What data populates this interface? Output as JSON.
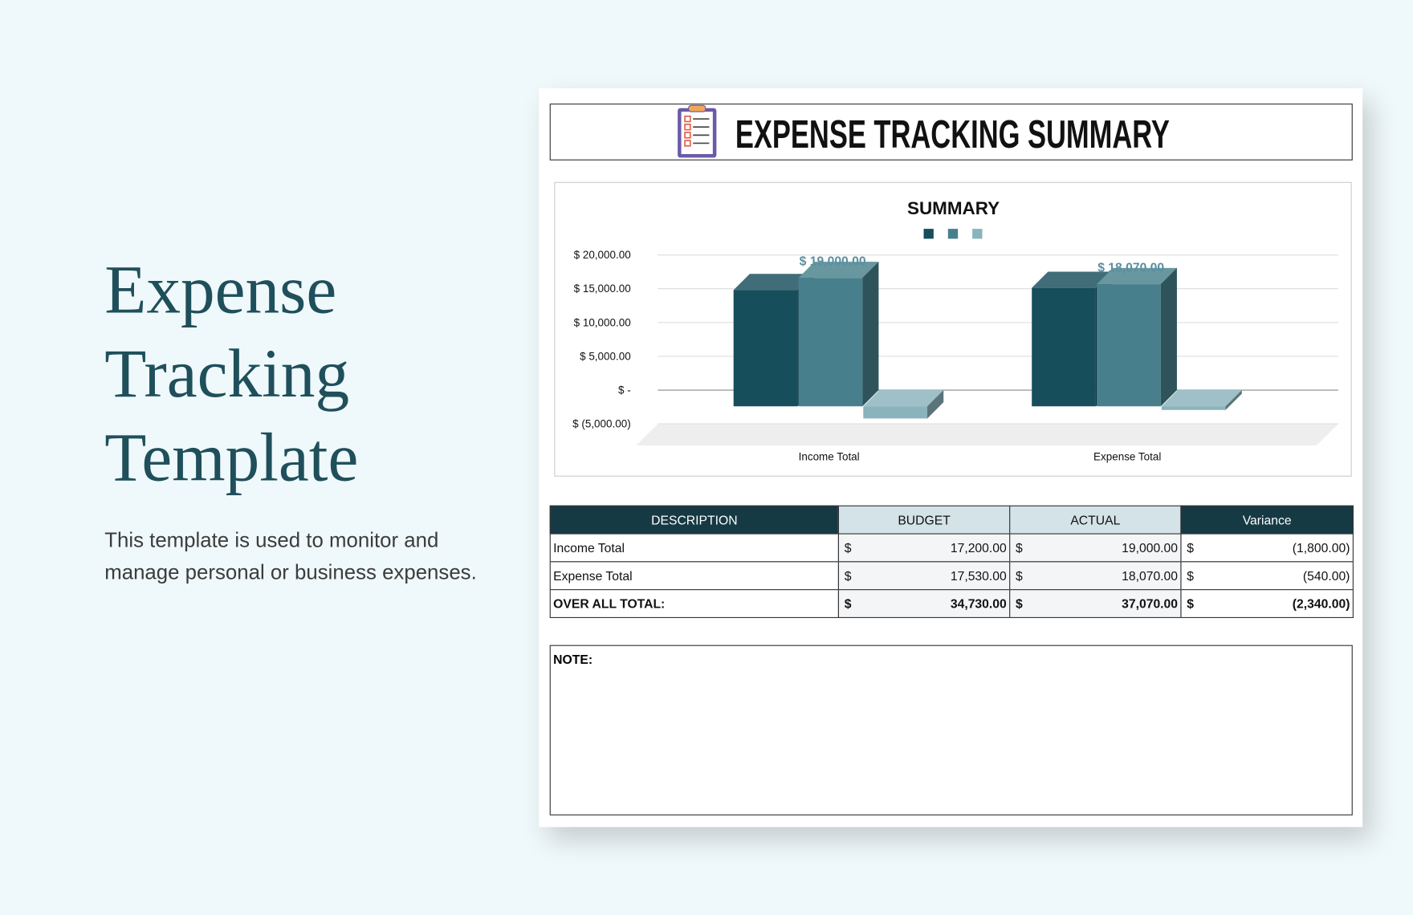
{
  "hero": {
    "title_lines": [
      "Expense",
      "Tracking",
      "Template"
    ],
    "description": "This template is used to monitor and manage personal or business expenses."
  },
  "sheet": {
    "title": "EXPENSE TRACKING SUMMARY"
  },
  "chart_data": {
    "type": "bar",
    "title": "SUMMARY",
    "categories": [
      "Income Total",
      "Expense Total"
    ],
    "series": [
      {
        "color": "#174e5b",
        "values": [
          17200,
          17530
        ]
      },
      {
        "color": "#47808c",
        "values": [
          19000,
          18070
        ],
        "value_labels": [
          "$ 19,000.00",
          "$ 18,070.00"
        ]
      },
      {
        "color": "#8ab3bc",
        "values": [
          -1800,
          -540
        ]
      }
    ],
    "ylim": [
      -5000,
      20000
    ],
    "yticks": [
      {
        "value": -5000,
        "label": "$ (5,000.00)"
      },
      {
        "value": 0,
        "label": "$ -"
      },
      {
        "value": 5000,
        "label": "$ 5,000.00"
      },
      {
        "value": 10000,
        "label": "$ 10,000.00"
      },
      {
        "value": 15000,
        "label": "$ 15,000.00"
      },
      {
        "value": 20000,
        "label": "$ 20,000.00"
      }
    ],
    "grid": true
  },
  "table": {
    "currency_symbol": "$",
    "headers": [
      "DESCRIPTION",
      "BUDGET",
      "ACTUAL",
      "Variance"
    ],
    "rows": [
      [
        "Income Total",
        "17,200.00",
        "19,000.00",
        "(1,800.00)"
      ],
      [
        "Expense Total",
        "17,530.00",
        "18,070.00",
        "(540.00)"
      ],
      [
        "OVER ALL TOTAL:",
        "34,730.00",
        "37,070.00",
        "(2,340.00)"
      ]
    ]
  },
  "note": {
    "label": "NOTE:"
  }
}
